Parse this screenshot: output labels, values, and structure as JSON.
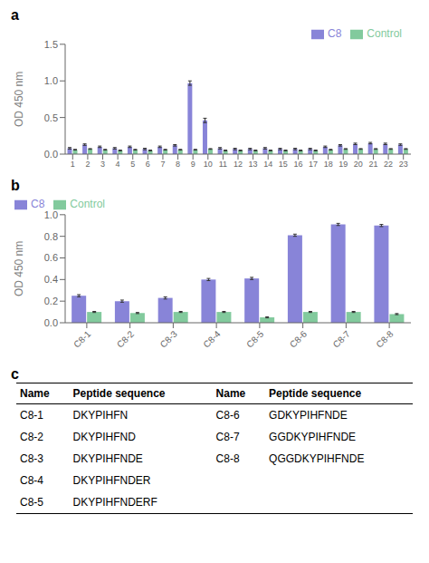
{
  "chart_data": [
    {
      "type": "bar",
      "title": "a",
      "y_label": "OD 450 nm",
      "categories": [
        "1",
        "2",
        "3",
        "4",
        "5",
        "6",
        "7",
        "8",
        "9",
        "10",
        "11",
        "12",
        "13",
        "14",
        "15",
        "16",
        "17",
        "18",
        "19",
        "20",
        "21",
        "22",
        "23"
      ],
      "series": [
        {
          "name": "C8",
          "values": [
            0.08,
            0.13,
            0.1,
            0.08,
            0.1,
            0.07,
            0.1,
            0.12,
            0.97,
            0.46,
            0.08,
            0.07,
            0.07,
            0.08,
            0.07,
            0.07,
            0.07,
            0.1,
            0.12,
            0.14,
            0.15,
            0.14,
            0.13
          ],
          "errors": [
            0.01,
            0.01,
            0.01,
            0.01,
            0.01,
            0.01,
            0.01,
            0.01,
            0.03,
            0.03,
            0.01,
            0.01,
            0.01,
            0.01,
            0.01,
            0.01,
            0.01,
            0.01,
            0.01,
            0.01,
            0.01,
            0.01,
            0.01
          ]
        },
        {
          "name": "Control",
          "values": [
            0.06,
            0.07,
            0.06,
            0.05,
            0.06,
            0.05,
            0.06,
            0.06,
            0.06,
            0.07,
            0.05,
            0.05,
            0.05,
            0.05,
            0.05,
            0.05,
            0.05,
            0.06,
            0.07,
            0.07,
            0.07,
            0.07,
            0.07
          ],
          "errors": [
            0.005,
            0.005,
            0.005,
            0.005,
            0.005,
            0.005,
            0.005,
            0.005,
            0.005,
            0.005,
            0.005,
            0.005,
            0.005,
            0.005,
            0.005,
            0.005,
            0.005,
            0.005,
            0.005,
            0.005,
            0.005,
            0.005,
            0.005
          ]
        }
      ],
      "ylim": [
        0.0,
        1.5
      ],
      "yticks": [
        {
          "value": 0,
          "label": "0.0"
        },
        0.5,
        {
          "value": 1,
          "label": "1.0"
        },
        1.5
      ],
      "legend": "upper right",
      "grid": false
    },
    {
      "type": "bar",
      "title": "b",
      "y_label": "OD 450 nm",
      "categories": [
        "C8-1",
        "C8-2",
        "C8-3",
        "C8-4",
        "C8-5",
        "C8-6",
        "C8-7",
        "C8-8"
      ],
      "series": [
        {
          "name": "C8",
          "values": [
            0.25,
            0.2,
            0.23,
            0.4,
            0.41,
            0.81,
            0.91,
            0.9
          ],
          "errors": [
            0.01,
            0.01,
            0.01,
            0.01,
            0.01,
            0.01,
            0.01,
            0.01
          ]
        },
        {
          "name": "Control",
          "values": [
            0.1,
            0.09,
            0.1,
            0.1,
            0.05,
            0.1,
            0.1,
            0.08
          ],
          "errors": [
            0.005,
            0.005,
            0.005,
            0.005,
            0.005,
            0.005,
            0.005,
            0.005
          ]
        }
      ],
      "ylim": [
        0.0,
        1.0
      ],
      "yticks": [
        {
          "value": 0,
          "label": "0.0"
        },
        0.2,
        0.4,
        0.6,
        0.8,
        {
          "value": 1,
          "label": "1.0"
        }
      ],
      "legend": "upper left",
      "grid": false
    },
    {
      "type": "table",
      "title": "c",
      "headers": [
        "Name",
        "Peptide sequence",
        "Name",
        "Peptide sequence"
      ],
      "rows": [
        [
          "C8-1",
          "DKYPIHFN",
          "C8-6",
          "GDKYPIHFNDE"
        ],
        [
          "C8-2",
          "DKYPIHFND",
          "C8-7",
          "GGDKYPIHFNDE"
        ],
        [
          "C8-3",
          "DKYPIHFNDE",
          "C8-8",
          "QGGDKYPIHFNDE"
        ],
        [
          "C8-4",
          "DKYPIHFNDER",
          null,
          null
        ],
        [
          "C8-5",
          "DKYPIHFNDERF",
          null,
          null
        ]
      ]
    }
  ]
}
